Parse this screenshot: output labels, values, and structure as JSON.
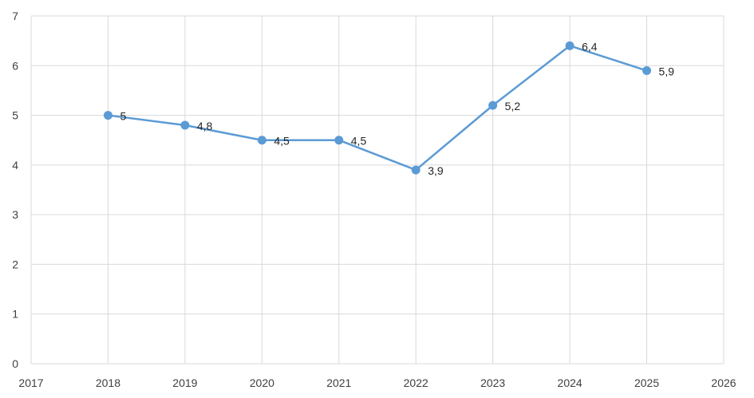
{
  "chart_data": {
    "type": "line",
    "title": "",
    "xlabel": "",
    "ylabel": "",
    "xlim": [
      2017,
      2026
    ],
    "ylim": [
      0,
      7
    ],
    "x_ticks": [
      "2017",
      "2018",
      "2019",
      "2020",
      "2021",
      "2022",
      "2023",
      "2024",
      "2025",
      "2026"
    ],
    "y_ticks": [
      "0",
      "1",
      "2",
      "3",
      "4",
      "5",
      "6",
      "7"
    ],
    "grid": true,
    "legend": "none",
    "series": [
      {
        "color": "#5B9BD5",
        "x": [
          2018,
          2019,
          2020,
          2021,
          2022,
          2023,
          2024,
          2025
        ],
        "values": [
          5,
          4.8,
          4.5,
          4.5,
          3.9,
          5.2,
          6.4,
          5.9
        ],
        "labels": [
          "5",
          "4,8",
          "4,5",
          "4,5",
          "3,9",
          "5,2",
          "6,4",
          "5,9"
        ]
      }
    ],
    "grid_color": "#D9D9D9"
  }
}
